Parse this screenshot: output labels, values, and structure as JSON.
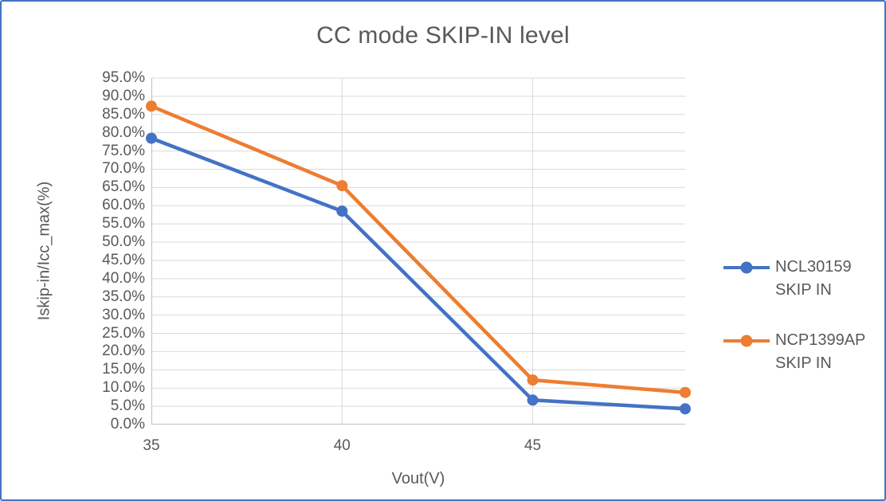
{
  "colors": {
    "series_blue": "#4472C4",
    "series_orange": "#ED7D31",
    "gridline": "#D9D9D9",
    "axis_line": "#BFBFBF",
    "text": "#595959",
    "chart_border": "#4472C4"
  },
  "chart_data": {
    "type": "line",
    "title": "CC mode SKIP-IN level",
    "xlabel": "Vout(V)",
    "ylabel": "Iskip-in/Icc_max(%)",
    "xlim": [
      35,
      49
    ],
    "ylim": [
      0,
      95
    ],
    "y_major_unit": 5,
    "x_ticks": [
      35,
      40,
      45
    ],
    "x_tick_labels": [
      "35",
      "40",
      "45"
    ],
    "y_tick_labels": [
      "95.0%",
      "90.0%",
      "85.0%",
      "80.0%",
      "75.0%",
      "70.0%",
      "65.0%",
      "60.0%",
      "55.0%",
      "50.0%",
      "45.0%",
      "40.0%",
      "35.0%",
      "30.0%",
      "25.0%",
      "20.0%",
      "15.0%",
      "10.0%",
      "5.0%",
      "0.0%"
    ],
    "x": [
      35,
      40,
      45,
      49
    ],
    "series": [
      {
        "name": "NCL30159 SKIP IN",
        "color": "#4472C4",
        "values": [
          78.5,
          58.5,
          6.7,
          4.3
        ]
      },
      {
        "name": "NCP1399AP SKIP IN",
        "color": "#ED7D31",
        "values": [
          87.3,
          65.5,
          12.2,
          8.8
        ]
      }
    ],
    "grid": true,
    "legend_position": "right"
  }
}
